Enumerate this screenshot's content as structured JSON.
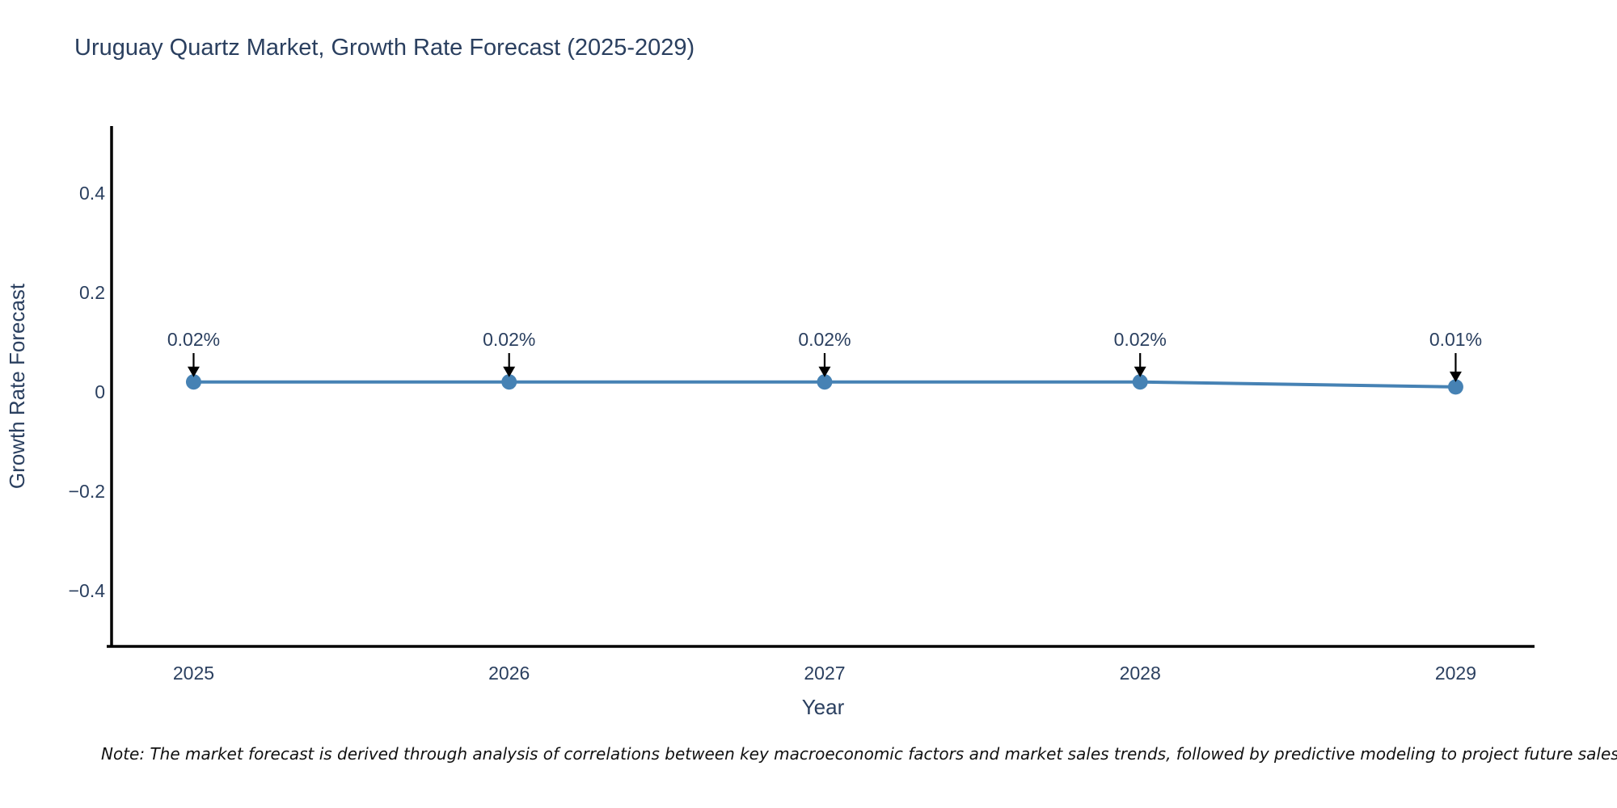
{
  "title": "Uruguay Quartz Market, Growth Rate Forecast (2025-2029)",
  "note": "Note: The market forecast is derived through analysis of correlations between key macroeconomic factors and market sales trends, followed by predictive modeling to project future sales",
  "chart_data": {
    "type": "line",
    "title": "Uruguay Quartz Market, Growth Rate Forecast (2025-2029)",
    "xlabel": "Year",
    "ylabel": "Growth Rate Forecast",
    "x": [
      2025,
      2026,
      2027,
      2028,
      2029
    ],
    "values": [
      0.02,
      0.02,
      0.02,
      0.02,
      0.01
    ],
    "point_labels": [
      "0.02%",
      "0.02%",
      "0.02%",
      "0.02%",
      "0.01%"
    ],
    "yticks": [
      0.4,
      0.2,
      0,
      -0.2,
      -0.4
    ],
    "ytick_labels": [
      "0.4",
      "0.2",
      "0",
      "−0.2",
      "−0.4"
    ],
    "xlim": [
      2024.74,
      2029.25
    ],
    "ylim": [
      -0.5122,
      0.5285
    ],
    "grid": false,
    "legend": "none",
    "line_color": "#4682b4",
    "marker_color": "#4682b4",
    "axis_color": "#000000",
    "text_color": "#2a3f5f",
    "annotation_arrow_color": "#000000"
  }
}
